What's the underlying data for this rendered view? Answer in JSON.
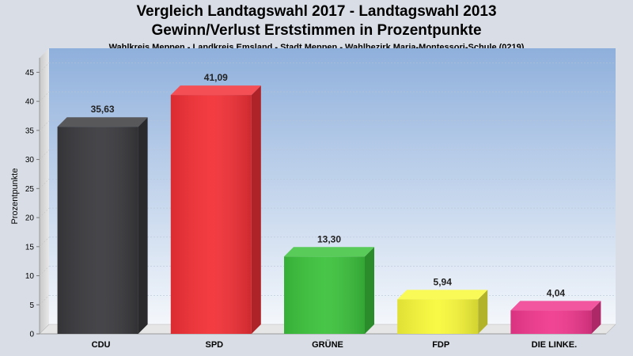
{
  "chart_data": {
    "type": "bar",
    "title": "Vergleich Landtagswahl 2017 - Landtagswahl 2013",
    "subtitle": "Gewinn/Verlust Erststimmen in Prozentpunkte",
    "subtitle2": "Wahlkreis Meppen - Landkreis Emsland - Stadt Meppen - Wahlbezirk Maria-Montessori-Schule (0219)",
    "ylabel": "Prozentpunkte",
    "xlabel": "",
    "categories": [
      "CDU",
      "SPD",
      "GRÜNE",
      "FDP",
      "DIE LINKE."
    ],
    "values": [
      35.63,
      41.09,
      13.3,
      5.94,
      4.04
    ],
    "value_labels": [
      "35,63",
      "41,09",
      "13,30",
      "5,94",
      "4,04"
    ],
    "colors": [
      "#3a3a3e",
      "#f23036",
      "#3cc23c",
      "#f8f83a",
      "#f0388e"
    ],
    "ylim": [
      0,
      47.5
    ],
    "yticks": [
      0,
      5,
      10,
      15,
      20,
      25,
      30,
      35,
      40,
      45
    ],
    "grid": true,
    "legend": "none"
  }
}
